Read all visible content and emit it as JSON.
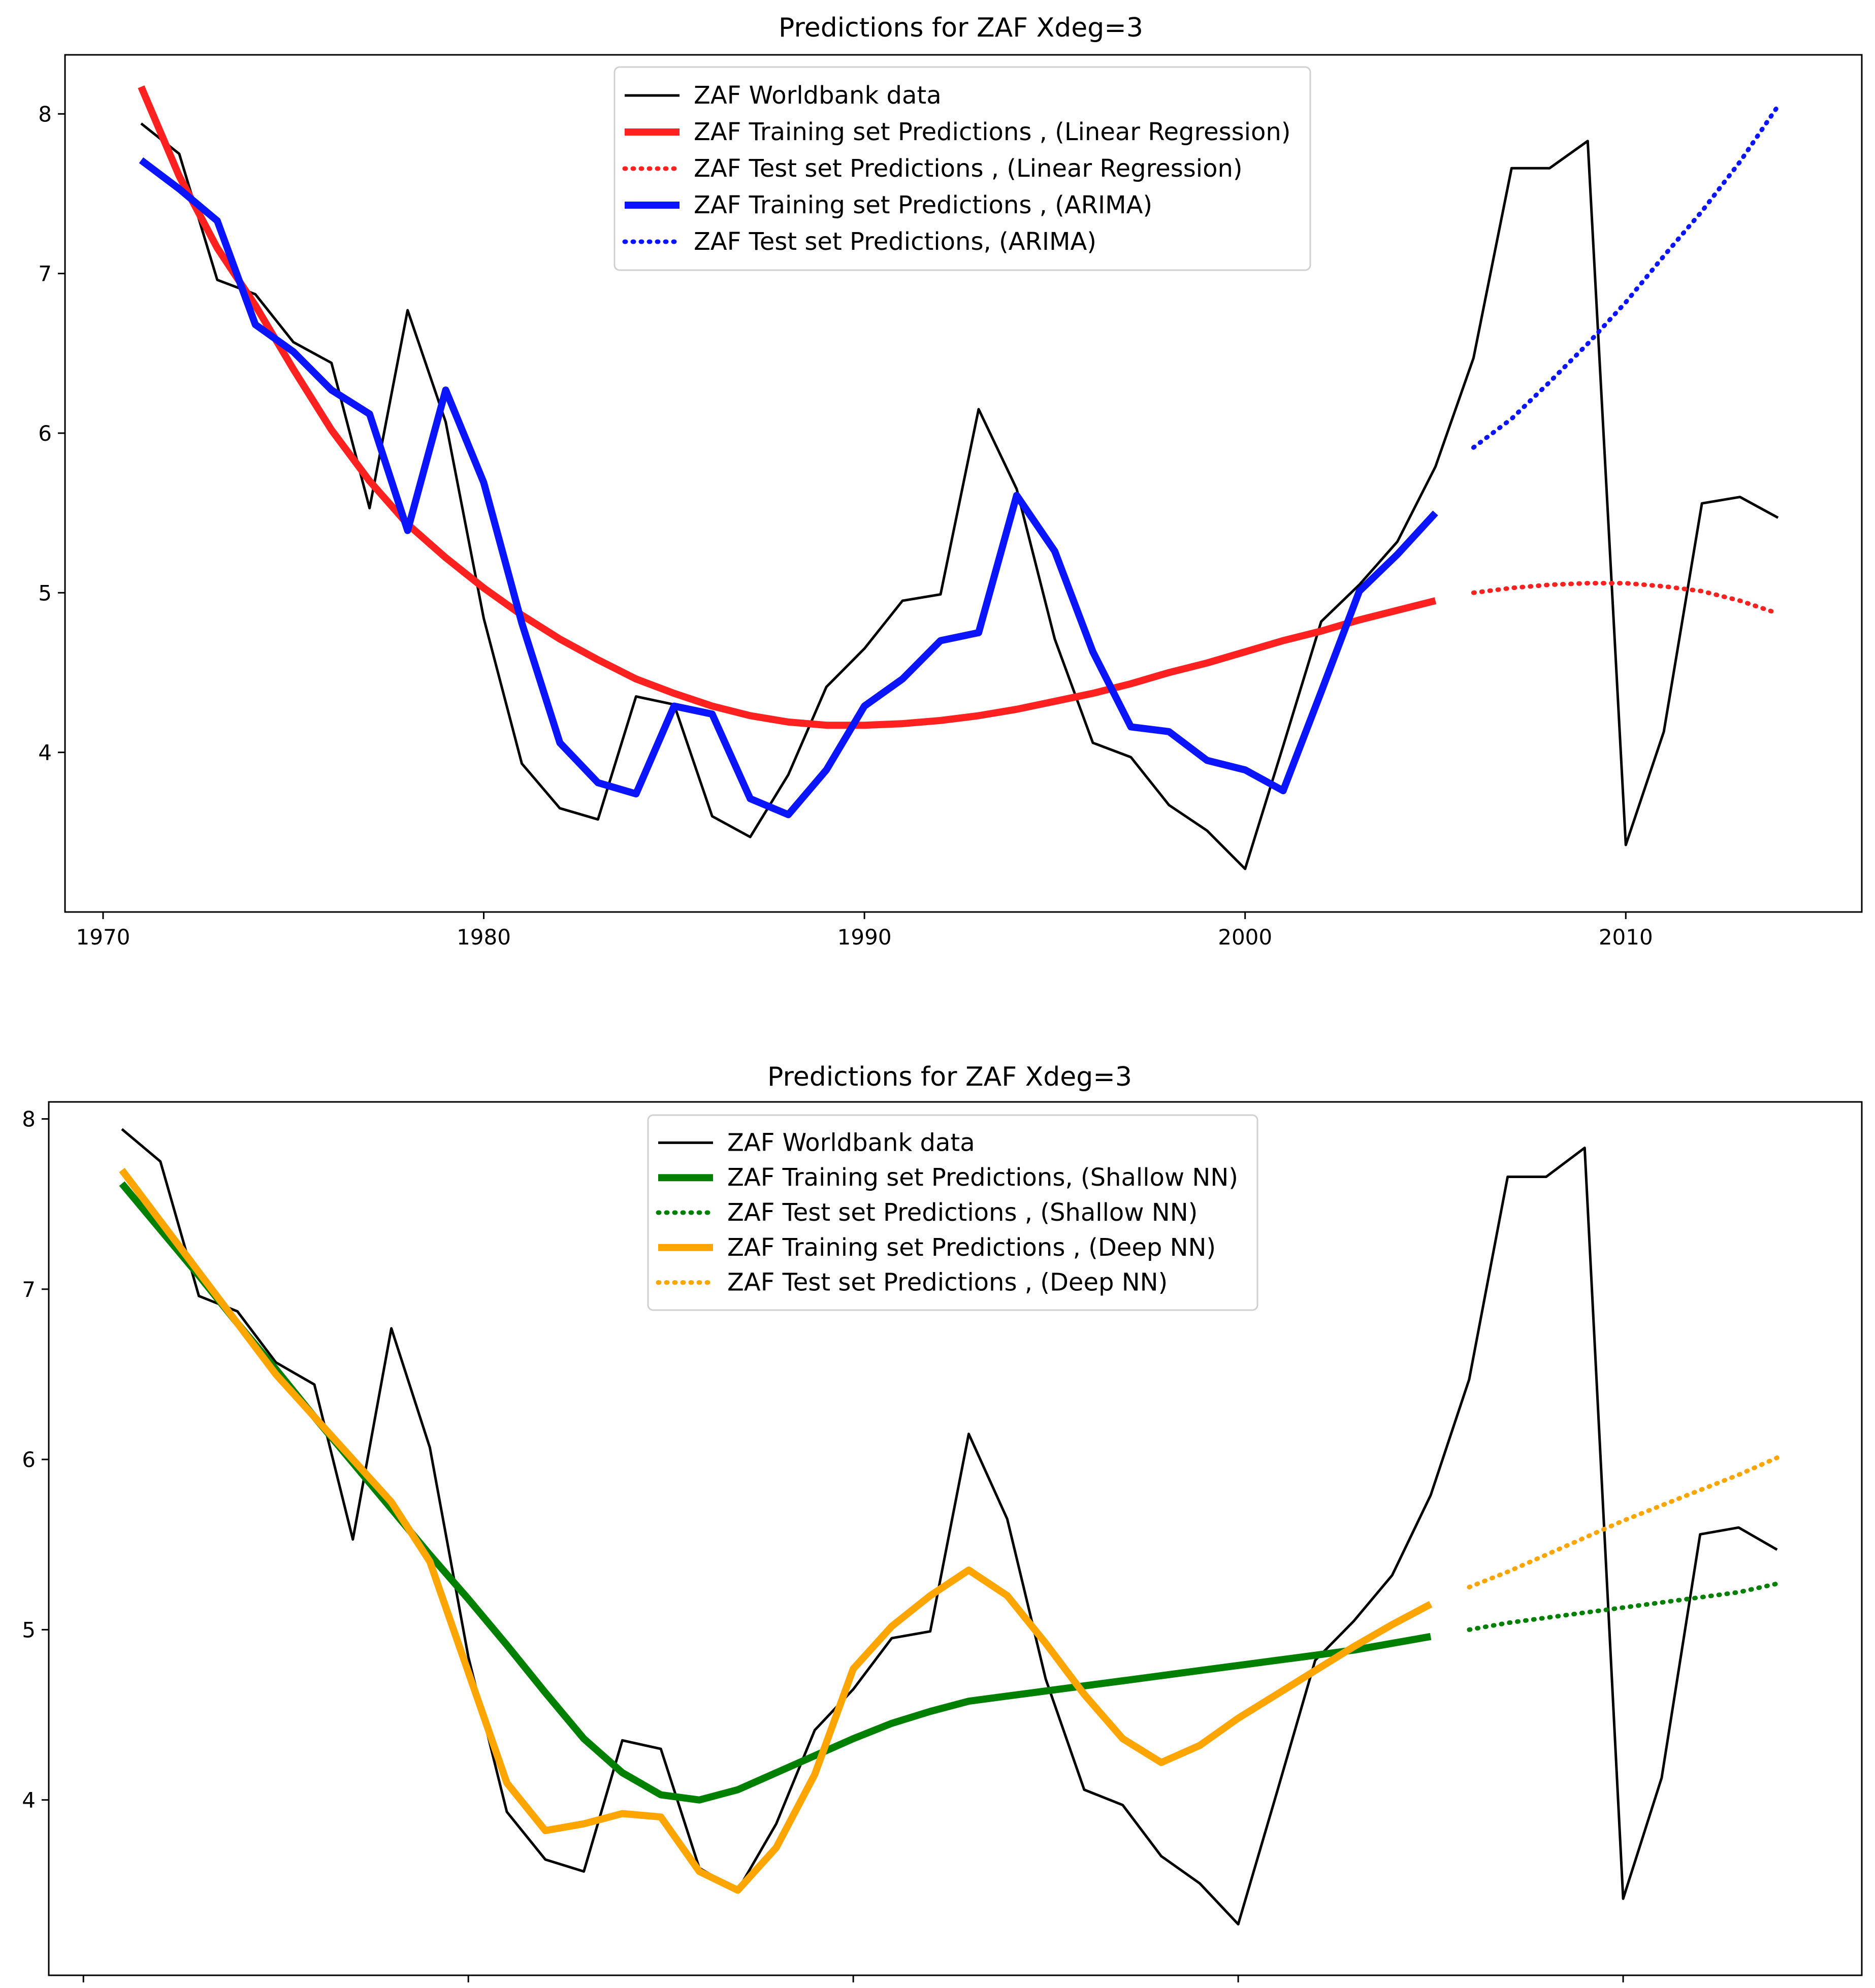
{
  "chart_data": [
    {
      "type": "line",
      "title": "Predictions for ZAF  Xdeg=3",
      "xlim": [
        1969,
        2016.2
      ],
      "ylim": [
        3.0,
        8.37
      ],
      "xticks": [
        1970,
        1980,
        1990,
        2000,
        2010
      ],
      "yticks": [
        4,
        5,
        6,
        7,
        8
      ],
      "legend_position": "top-center",
      "series": [
        {
          "name": "ZAF Worldbank data",
          "color": "#000000",
          "style": "solid",
          "width": "thin",
          "x": [
            1971,
            1972,
            1973,
            1974,
            1975,
            1976,
            1977,
            1978,
            1979,
            1980,
            1981,
            1982,
            1983,
            1984,
            1985,
            1986,
            1987,
            1988,
            1989,
            1990,
            1991,
            1992,
            1993,
            1994,
            1995,
            1996,
            1997,
            1998,
            1999,
            2000,
            2001,
            2002,
            2003,
            2004,
            2005,
            2006,
            2007,
            2008,
            2009,
            2010,
            2011,
            2012,
            2013,
            2014
          ],
          "y": [
            7.94,
            7.75,
            6.96,
            6.87,
            6.57,
            6.44,
            5.53,
            6.77,
            6.07,
            4.84,
            3.93,
            3.65,
            3.58,
            4.35,
            4.3,
            3.6,
            3.47,
            3.86,
            4.41,
            4.65,
            4.95,
            4.99,
            6.15,
            5.65,
            4.71,
            4.06,
            3.97,
            3.67,
            3.51,
            3.27,
            4.04,
            4.82,
            5.05,
            5.32,
            5.79,
            6.47,
            7.66,
            7.66,
            7.83,
            3.42,
            4.13,
            5.56,
            5.6,
            5.47
          ]
        },
        {
          "name": "ZAF Training set Predictions , (Linear Regression)",
          "color": "#ff2020",
          "style": "solid",
          "width": "thick",
          "x": [
            1971,
            1972,
            1973,
            1974,
            1975,
            1976,
            1977,
            1978,
            1979,
            1980,
            1981,
            1982,
            1983,
            1984,
            1985,
            1986,
            1987,
            1988,
            1989,
            1990,
            1991,
            1992,
            1993,
            1994,
            1995,
            1996,
            1997,
            1998,
            1999,
            2000,
            2001,
            2002,
            2003,
            2004,
            2005
          ],
          "y": [
            8.17,
            7.61,
            7.16,
            6.8,
            6.4,
            6.02,
            5.7,
            5.43,
            5.22,
            5.03,
            4.86,
            4.71,
            4.58,
            4.46,
            4.37,
            4.29,
            4.23,
            4.19,
            4.17,
            4.17,
            4.18,
            4.2,
            4.23,
            4.27,
            4.32,
            4.37,
            4.43,
            4.5,
            4.56,
            4.63,
            4.7,
            4.76,
            4.83,
            4.89,
            4.95
          ]
        },
        {
          "name": "ZAF Test set Predictions , (Linear Regression)",
          "color": "#ff2020",
          "style": "dotted",
          "width": "medium",
          "x": [
            2006,
            2007,
            2008,
            2009,
            2010,
            2011,
            2012,
            2013,
            2014
          ],
          "y": [
            5.0,
            5.03,
            5.05,
            5.06,
            5.06,
            5.04,
            5.01,
            4.95,
            4.87
          ]
        },
        {
          "name": "ZAF Training set Predictions , (ARIMA)",
          "color": "#0a14ff",
          "style": "solid",
          "width": "thick",
          "x": [
            1971,
            1972,
            1973,
            1974,
            1975,
            1976,
            1977,
            1978,
            1979,
            1980,
            1981,
            1982,
            1983,
            1984,
            1985,
            1986,
            1987,
            1988,
            1989,
            1990,
            1991,
            1992,
            1993,
            1994,
            1995,
            1996,
            1997,
            1998,
            1999,
            2000,
            2001,
            2002,
            2003,
            2004,
            2005
          ],
          "y": [
            7.71,
            7.53,
            7.33,
            6.68,
            6.51,
            6.27,
            6.12,
            5.39,
            6.27,
            5.69,
            4.81,
            4.06,
            3.81,
            3.74,
            4.29,
            4.24,
            3.71,
            3.61,
            3.89,
            4.29,
            4.46,
            4.7,
            4.75,
            5.61,
            5.26,
            4.63,
            4.16,
            4.13,
            3.95,
            3.89,
            3.76,
            4.38,
            5.01,
            5.24,
            5.5
          ]
        },
        {
          "name": "ZAF Test set Predictions, (ARIMA)",
          "color": "#0a14ff",
          "style": "dotted",
          "width": "medium",
          "x": [
            2006,
            2007,
            2008,
            2009,
            2010,
            2011,
            2012,
            2013,
            2014
          ],
          "y": [
            5.91,
            6.09,
            6.32,
            6.56,
            6.82,
            7.11,
            7.39,
            7.7,
            8.05
          ]
        }
      ]
    },
    {
      "type": "line",
      "title": "Predictions for ZAF  Xdeg=3",
      "xlim": [
        1969.1,
        2016.2
      ],
      "ylim": [
        2.97,
        8.1
      ],
      "xticks": [
        1970,
        1980,
        1990,
        2000,
        2010
      ],
      "yticks": [
        4,
        5,
        6,
        7,
        8
      ],
      "legend_position": "top-center",
      "series": [
        {
          "name": "ZAF Worldbank data",
          "color": "#000000",
          "style": "solid",
          "width": "thin",
          "x": [
            1971,
            1972,
            1973,
            1974,
            1975,
            1976,
            1977,
            1978,
            1979,
            1980,
            1981,
            1982,
            1983,
            1984,
            1985,
            1986,
            1987,
            1988,
            1989,
            1990,
            1991,
            1992,
            1993,
            1994,
            1995,
            1996,
            1997,
            1998,
            1999,
            2000,
            2001,
            2002,
            2003,
            2004,
            2005,
            2006,
            2007,
            2008,
            2009,
            2010,
            2011,
            2012,
            2013,
            2014
          ],
          "y": [
            7.94,
            7.75,
            6.96,
            6.87,
            6.57,
            6.44,
            5.53,
            6.77,
            6.07,
            4.84,
            3.93,
            3.65,
            3.58,
            4.35,
            4.3,
            3.6,
            3.47,
            3.86,
            4.41,
            4.65,
            4.95,
            4.99,
            6.15,
            5.65,
            4.71,
            4.06,
            3.97,
            3.67,
            3.51,
            3.27,
            4.04,
            4.82,
            5.05,
            5.32,
            5.79,
            6.47,
            7.66,
            7.66,
            7.83,
            3.42,
            4.13,
            5.56,
            5.6,
            5.47
          ]
        },
        {
          "name": "ZAF Training set Predictions, (Shallow NN)",
          "color": "#008000",
          "style": "solid",
          "width": "thick",
          "x": [
            1971,
            1972,
            1973,
            1974,
            1975,
            1976,
            1977,
            1978,
            1979,
            1980,
            1981,
            1982,
            1983,
            1984,
            1985,
            1986,
            1987,
            1988,
            1989,
            1990,
            1991,
            1992,
            1993,
            1994,
            1995,
            1996,
            1997,
            1998,
            1999,
            2000,
            2001,
            2002,
            2003,
            2004,
            2005
          ],
          "y": [
            7.62,
            7.35,
            7.08,
            6.8,
            6.53,
            6.25,
            5.98,
            5.71,
            5.44,
            5.18,
            4.91,
            4.63,
            4.36,
            4.16,
            4.03,
            4.0,
            4.06,
            4.16,
            4.26,
            4.36,
            4.45,
            4.52,
            4.58,
            4.61,
            4.64,
            4.67,
            4.7,
            4.73,
            4.76,
            4.79,
            4.82,
            4.85,
            4.88,
            4.92,
            4.96
          ]
        },
        {
          "name": "ZAF Test set Predictions , (Shallow NN)",
          "color": "#008000",
          "style": "dotted",
          "width": "medium",
          "x": [
            2006,
            2007,
            2008,
            2009,
            2010,
            2011,
            2012,
            2013,
            2014
          ],
          "y": [
            5.0,
            5.04,
            5.07,
            5.1,
            5.13,
            5.16,
            5.19,
            5.22,
            5.27
          ]
        },
        {
          "name": "ZAF Training set Predictions , (Deep NN)",
          "color": "#ffa500",
          "style": "solid",
          "width": "thick",
          "x": [
            1971,
            1972,
            1973,
            1974,
            1975,
            1976,
            1977,
            1978,
            1979,
            1980,
            1981,
            1982,
            1983,
            1984,
            1985,
            1986,
            1987,
            1988,
            1989,
            1990,
            1991,
            1992,
            1993,
            1994,
            1995,
            1996,
            1997,
            1998,
            1999,
            2000,
            2001,
            2002,
            2003,
            2004,
            2005
          ],
          "y": [
            7.7,
            7.4,
            7.1,
            6.8,
            6.5,
            6.25,
            6.0,
            5.75,
            5.4,
            4.75,
            4.1,
            3.82,
            3.86,
            3.92,
            3.9,
            3.58,
            3.47,
            3.72,
            4.15,
            4.77,
            5.02,
            5.2,
            5.35,
            5.2,
            4.92,
            4.62,
            4.36,
            4.22,
            4.32,
            4.48,
            4.62,
            4.76,
            4.9,
            5.03,
            5.15
          ]
        },
        {
          "name": "ZAF Test set Predictions , (Deep NN)",
          "color": "#ffa500",
          "style": "dotted",
          "width": "medium",
          "x": [
            2006,
            2007,
            2008,
            2009,
            2010,
            2011,
            2012,
            2013,
            2014
          ],
          "y": [
            5.25,
            5.34,
            5.44,
            5.54,
            5.64,
            5.73,
            5.82,
            5.91,
            6.01
          ]
        }
      ]
    }
  ]
}
